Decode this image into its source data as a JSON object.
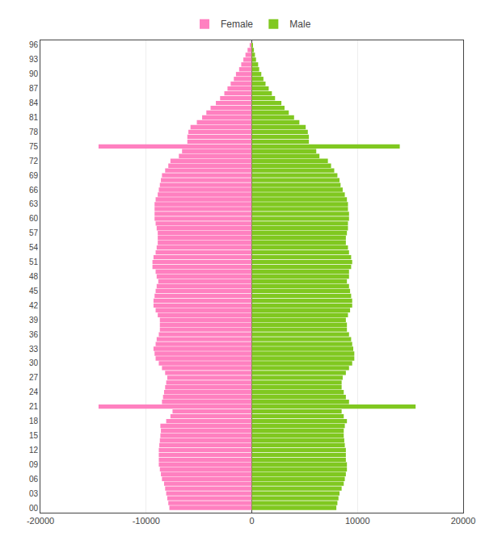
{
  "chart_data": {
    "type": "bar",
    "orientation": "horizontal",
    "categories": [
      0,
      1,
      2,
      3,
      4,
      5,
      6,
      7,
      8,
      9,
      10,
      11,
      12,
      13,
      14,
      15,
      16,
      17,
      18,
      19,
      20,
      21,
      22,
      23,
      24,
      25,
      26,
      27,
      28,
      29,
      30,
      31,
      32,
      33,
      34,
      35,
      36,
      37,
      38,
      39,
      40,
      41,
      42,
      43,
      44,
      45,
      46,
      47,
      48,
      49,
      50,
      51,
      52,
      53,
      54,
      55,
      56,
      57,
      58,
      59,
      60,
      61,
      62,
      63,
      64,
      65,
      66,
      67,
      68,
      69,
      70,
      71,
      72,
      73,
      74,
      75,
      76,
      77,
      78,
      79,
      80,
      81,
      82,
      83,
      84,
      85,
      86,
      87,
      88,
      89,
      90,
      91,
      92,
      93,
      94,
      95,
      96
    ],
    "series": [
      {
        "name": "Female",
        "color": "#FF80C0",
        "values": [
          -7800,
          -7900,
          -8000,
          -8100,
          -8200,
          -8300,
          -8500,
          -8600,
          -8700,
          -8800,
          -8800,
          -8800,
          -8800,
          -8750,
          -8700,
          -8650,
          -8600,
          -8650,
          -8100,
          -7700,
          -7500,
          -14500,
          -8500,
          -8400,
          -8300,
          -8200,
          -8100,
          -8000,
          -8200,
          -8500,
          -8800,
          -9100,
          -9200,
          -9300,
          -9100,
          -9000,
          -8800,
          -8700,
          -8700,
          -8700,
          -8900,
          -9100,
          -9300,
          -9300,
          -9200,
          -9100,
          -9000,
          -8850,
          -9000,
          -9100,
          -9400,
          -9400,
          -9300,
          -9100,
          -9000,
          -8900,
          -8900,
          -8900,
          -9000,
          -9100,
          -9200,
          -9200,
          -9200,
          -9200,
          -9100,
          -8900,
          -8800,
          -8700,
          -8600,
          -8500,
          -8200,
          -7900,
          -7700,
          -6900,
          -6600,
          -14500,
          -6100,
          -6100,
          -6000,
          -5800,
          -5200,
          -4700,
          -4300,
          -3900,
          -3400,
          -3000,
          -2600,
          -2300,
          -2000,
          -1700,
          -1500,
          -1200,
          -1000,
          -800,
          -600,
          -400,
          -200
        ]
      },
      {
        "name": "Male",
        "color": "#80C820",
        "values": [
          8000,
          8100,
          8200,
          8300,
          8500,
          8700,
          8800,
          8900,
          9000,
          9000,
          8900,
          8900,
          8900,
          8800,
          8750,
          8700,
          8700,
          8800,
          9000,
          8700,
          8500,
          15500,
          9200,
          8900,
          8700,
          8500,
          8500,
          8600,
          8900,
          9200,
          9500,
          9700,
          9700,
          9600,
          9500,
          9400,
          9200,
          9000,
          9000,
          8900,
          9100,
          9300,
          9500,
          9500,
          9400,
          9300,
          9200,
          9000,
          9200,
          9200,
          9400,
          9500,
          9400,
          9200,
          9100,
          8900,
          8900,
          9000,
          9100,
          9100,
          9200,
          9200,
          9100,
          9100,
          9000,
          8800,
          8600,
          8400,
          8300,
          8100,
          7800,
          7500,
          7200,
          6400,
          6100,
          14000,
          5400,
          5400,
          5300,
          5100,
          4500,
          4000,
          3500,
          3100,
          2800,
          2200,
          1900,
          1600,
          1300,
          1100,
          900,
          700,
          600,
          400,
          300,
          200,
          100
        ]
      }
    ],
    "xlim": [
      -20000,
      20000
    ],
    "xticks": [
      -20000,
      -10000,
      0,
      10000,
      20000
    ],
    "ylim": [
      -1,
      97
    ],
    "yticks": [
      {
        "value": 0,
        "label": "00"
      },
      {
        "value": 3,
        "label": "03"
      },
      {
        "value": 6,
        "label": "06"
      },
      {
        "value": 9,
        "label": "09"
      },
      12,
      15,
      18,
      21,
      24,
      27,
      30,
      33,
      36,
      39,
      42,
      45,
      48,
      51,
      54,
      57,
      60,
      63,
      66,
      69,
      72,
      75,
      78,
      81,
      84,
      87,
      90,
      93,
      96
    ],
    "grid": "x",
    "legend": "upper center"
  }
}
